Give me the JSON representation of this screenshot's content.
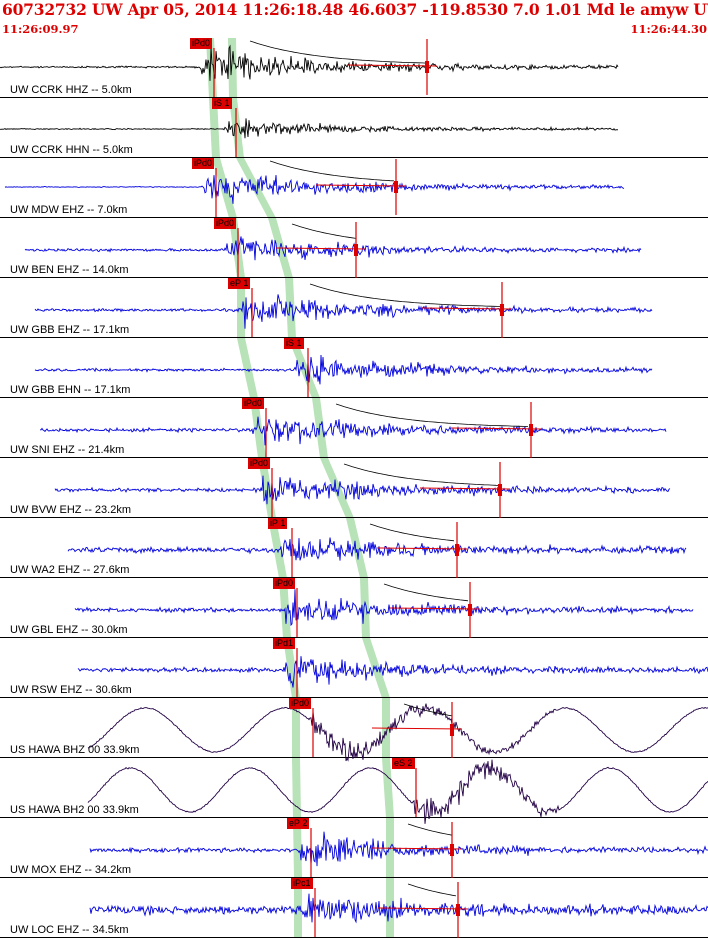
{
  "header": {
    "title": "60732732 UW Apr 05, 2014 11:26:18.48   46.6037 -119.8530  7.0 1.01 Md le amyw UW 01   2",
    "time_start": "11:26:09.97",
    "time_end": "11:26:44.30"
  },
  "colors": {
    "header_text": "#dd0000",
    "pick": "#dd0000",
    "vertical_component": "#0000dd",
    "broadband": "#220044",
    "bracket": "#b8e2b8",
    "coda": "#000000"
  },
  "traces": [
    {
      "label": "UW CCRK HHZ -- 5.0km",
      "pick": "iPd0",
      "color": "black"
    },
    {
      "label": "UW CCRK HHN -- 5.0km",
      "pick": "iS 1",
      "color": "black"
    },
    {
      "label": "UW MDW EHZ -- 7.0km",
      "pick": "iPd0",
      "color": "blue"
    },
    {
      "label": "UW BEN EHZ -- 14.0km",
      "pick": "iPd0",
      "color": "blue"
    },
    {
      "label": "UW GBB EHZ -- 17.1km",
      "pick": "eP 1",
      "color": "blue"
    },
    {
      "label": "UW GBB EHN -- 17.1km",
      "pick": "iS 1",
      "color": "blue"
    },
    {
      "label": "UW SNI EHZ -- 21.4km",
      "pick": "iPd0",
      "color": "blue"
    },
    {
      "label": "UW BVW EHZ -- 23.2km",
      "pick": "iPd0",
      "color": "blue"
    },
    {
      "label": "UW WA2 EHZ -- 27.6km",
      "pick": "iP 1",
      "color": "blue"
    },
    {
      "label": "UW GBL EHZ -- 30.0km",
      "pick": "iPd0",
      "color": "blue"
    },
    {
      "label": "UW RSW EHZ -- 30.6km",
      "pick": "iPd1",
      "color": "blue"
    },
    {
      "label": "US HAWA BHZ 00 33.9km",
      "pick": "iPd0",
      "color": "dark"
    },
    {
      "label": "US HAWA BH2 00 33.9km",
      "pick": "eS 2",
      "color": "dark"
    },
    {
      "label": "UW MOX EHZ -- 34.2km",
      "pick": "eP 2",
      "color": "blue"
    },
    {
      "label": "UW LOC EHZ -- 34.5km",
      "pick": "iPc1",
      "color": "blue"
    }
  ]
}
